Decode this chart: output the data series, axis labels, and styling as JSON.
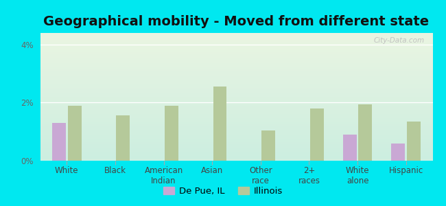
{
  "title": "Geographical mobility - Moved from different state",
  "categories": [
    "White",
    "Black",
    "American\nIndian",
    "Asian",
    "Other\nrace",
    "2+\nraces",
    "White\nalone",
    "Hispanic"
  ],
  "depue_values": [
    1.3,
    0.0,
    0.0,
    0.0,
    0.0,
    0.0,
    0.9,
    0.6
  ],
  "illinois_values": [
    1.9,
    1.55,
    1.9,
    2.55,
    1.05,
    1.8,
    1.95,
    1.35
  ],
  "bar_color_depue": "#c9a8d4",
  "bar_color_illinois": "#b5c99a",
  "ylim": [
    0,
    4.4
  ],
  "yticks": [
    0,
    2,
    4
  ],
  "ytick_labels": [
    "0%",
    "2%",
    "4%"
  ],
  "background_outer": "#00e8f0",
  "background_inner_top": "#eaf5e2",
  "background_inner_bottom": "#cceee0",
  "legend_depue": "De Pue, IL",
  "legend_illinois": "Illinois",
  "watermark": "City-Data.com",
  "title_fontsize": 14,
  "axis_fontsize": 8.5,
  "legend_fontsize": 9.5
}
